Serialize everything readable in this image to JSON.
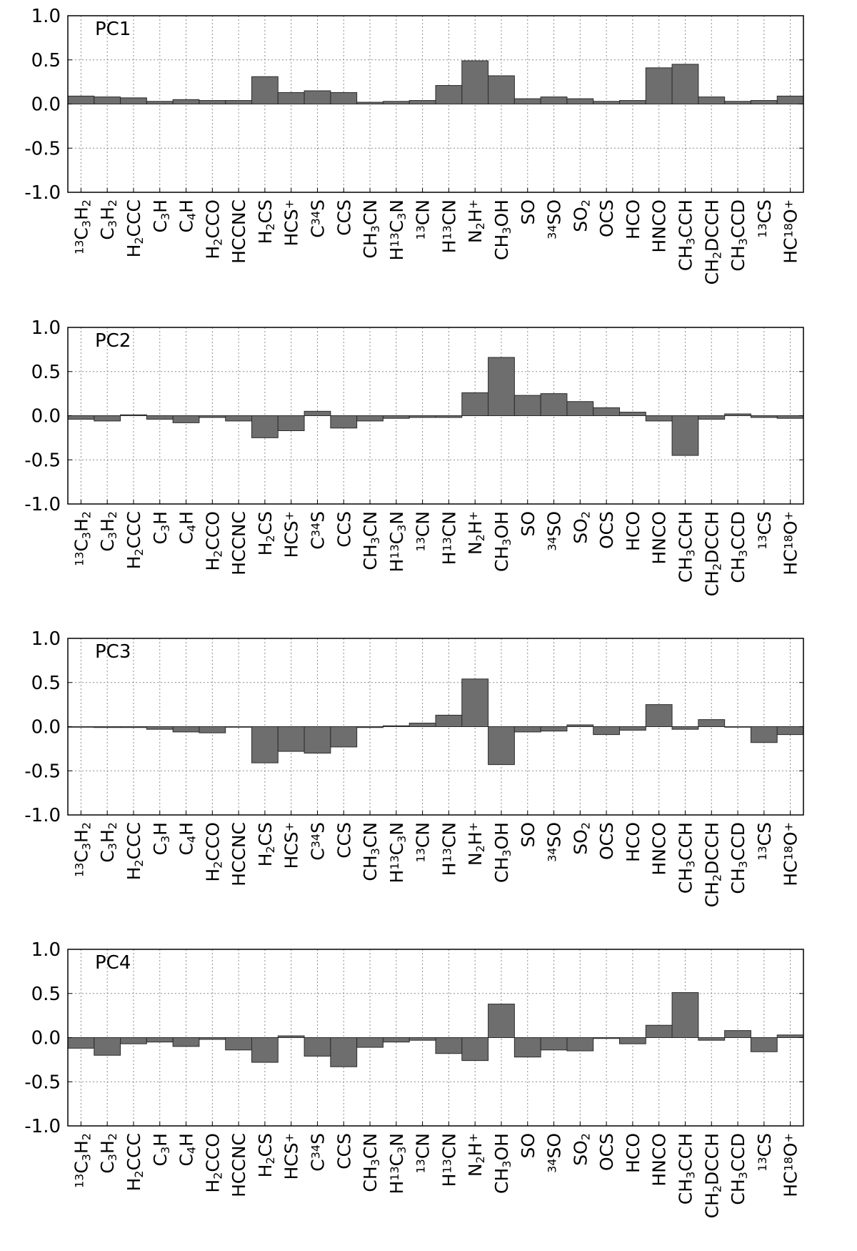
{
  "chart_data": [
    {
      "type": "bar",
      "panel_label": "PC1",
      "categories": [
        "13C3H2",
        "C3H2",
        "H2CCC",
        "C3H",
        "C4H",
        "H2CCO",
        "HCCNC",
        "H2CS",
        "HCS+",
        "C34S",
        "CCS",
        "CH3CN",
        "H13C3N",
        "13CN",
        "H13CN",
        "N2H+",
        "CH3OH",
        "SO",
        "34SO",
        "SO2",
        "OCS",
        "HCO",
        "HNCO",
        "CH3CCH",
        "CH2DCCH",
        "CH3CCD",
        "13CS",
        "HC18O+"
      ],
      "values": [
        0.09,
        0.08,
        0.07,
        0.03,
        0.05,
        0.04,
        0.04,
        0.31,
        0.13,
        0.15,
        0.13,
        0.02,
        0.03,
        0.04,
        0.21,
        0.49,
        0.32,
        0.06,
        0.08,
        0.06,
        0.03,
        0.04,
        0.41,
        0.45,
        0.08,
        0.03,
        0.04,
        0.09
      ],
      "ylim": [
        -1.0,
        1.0
      ],
      "yticks": [
        "1.0",
        "0.5",
        "0.0",
        "-0.5",
        "-1.0"
      ],
      "grid": true
    },
    {
      "type": "bar",
      "panel_label": "PC2",
      "categories": [
        "13C3H2",
        "C3H2",
        "H2CCC",
        "C3H",
        "C4H",
        "H2CCO",
        "HCCNC",
        "H2CS",
        "HCS+",
        "C34S",
        "CCS",
        "CH3CN",
        "H13C3N",
        "13CN",
        "H13CN",
        "N2H+",
        "CH3OH",
        "SO",
        "34SO",
        "SO2",
        "OCS",
        "HCO",
        "HNCO",
        "CH3CCH",
        "CH2DCCH",
        "CH3CCD",
        "13CS",
        "HC18O+"
      ],
      "values": [
        -0.04,
        -0.06,
        0.01,
        -0.04,
        -0.08,
        -0.02,
        -0.06,
        -0.25,
        -0.17,
        0.05,
        -0.14,
        -0.06,
        -0.03,
        -0.02,
        -0.02,
        0.26,
        0.66,
        0.23,
        0.25,
        0.16,
        0.09,
        0.04,
        -0.06,
        -0.45,
        -0.04,
        0.02,
        -0.02,
        -0.03
      ],
      "ylim": [
        -1.0,
        1.0
      ],
      "yticks": [
        "1.0",
        "0.5",
        "0.0",
        "-0.5",
        "-1.0"
      ],
      "grid": true
    },
    {
      "type": "bar",
      "panel_label": "PC3",
      "categories": [
        "13C3H2",
        "C3H2",
        "H2CCC",
        "C3H",
        "C4H",
        "H2CCO",
        "HCCNC",
        "H2CS",
        "HCS+",
        "C34S",
        "CCS",
        "CH3CN",
        "H13C3N",
        "13CN",
        "H13CN",
        "N2H+",
        "CH3OH",
        "SO",
        "34SO",
        "SO2",
        "OCS",
        "HCO",
        "HNCO",
        "CH3CCH",
        "CH2DCCH",
        "CH3CCD",
        "13CS",
        "HC18O+"
      ],
      "values": [
        0.0,
        -0.01,
        -0.01,
        -0.03,
        -0.06,
        -0.07,
        0.0,
        -0.41,
        -0.28,
        -0.3,
        -0.23,
        -0.01,
        0.01,
        0.04,
        0.13,
        0.54,
        -0.43,
        -0.06,
        -0.05,
        0.02,
        -0.09,
        -0.04,
        0.25,
        -0.03,
        0.08,
        0.0,
        -0.18,
        -0.09
      ],
      "ylim": [
        -1.0,
        1.0
      ],
      "yticks": [
        "1.0",
        "0.5",
        "0.0",
        "-0.5",
        "-1.0"
      ],
      "grid": true
    },
    {
      "type": "bar",
      "panel_label": "PC4",
      "categories": [
        "13C3H2",
        "C3H2",
        "H2CCC",
        "C3H",
        "C4H",
        "H2CCO",
        "HCCNC",
        "H2CS",
        "HCS+",
        "C34S",
        "CCS",
        "CH3CN",
        "H13C3N",
        "13CN",
        "H13CN",
        "N2H+",
        "CH3OH",
        "SO",
        "34SO",
        "SO2",
        "OCS",
        "HCO",
        "HNCO",
        "CH3CCH",
        "CH2DCCH",
        "CH3CCD",
        "13CS",
        "HC18O+"
      ],
      "values": [
        -0.12,
        -0.2,
        -0.07,
        -0.05,
        -0.1,
        -0.02,
        -0.14,
        -0.28,
        0.02,
        -0.21,
        -0.33,
        -0.11,
        -0.05,
        -0.03,
        -0.18,
        -0.26,
        0.38,
        -0.22,
        -0.14,
        -0.15,
        -0.01,
        -0.07,
        0.14,
        0.51,
        -0.03,
        0.08,
        -0.16,
        0.03
      ],
      "ylim": [
        -1.0,
        1.0
      ],
      "yticks": [
        "1.0",
        "0.5",
        "0.0",
        "-0.5",
        "-1.0"
      ],
      "grid": true
    }
  ],
  "category_labels_rich": [
    [
      {
        "sup": "13"
      },
      {
        "t": "C"
      },
      {
        "sub": "3"
      },
      {
        "t": "H"
      },
      {
        "sub": "2"
      }
    ],
    [
      {
        "t": "C"
      },
      {
        "sub": "3"
      },
      {
        "t": "H"
      },
      {
        "sub": "2"
      }
    ],
    [
      {
        "t": "H"
      },
      {
        "sub": "2"
      },
      {
        "t": "CCC"
      }
    ],
    [
      {
        "t": "C"
      },
      {
        "sub": "3"
      },
      {
        "t": "H"
      }
    ],
    [
      {
        "t": "C"
      },
      {
        "sub": "4"
      },
      {
        "t": "H"
      }
    ],
    [
      {
        "t": "H"
      },
      {
        "sub": "2"
      },
      {
        "t": "CCO"
      }
    ],
    [
      {
        "t": "HCCNC"
      }
    ],
    [
      {
        "t": "H"
      },
      {
        "sub": "2"
      },
      {
        "t": "CS"
      }
    ],
    [
      {
        "t": "HCS"
      },
      {
        "sup": "+"
      }
    ],
    [
      {
        "t": "C"
      },
      {
        "sup": "34"
      },
      {
        "t": "S"
      }
    ],
    [
      {
        "t": "CCS"
      }
    ],
    [
      {
        "t": "CH"
      },
      {
        "sub": "3"
      },
      {
        "t": "CN"
      }
    ],
    [
      {
        "t": "H"
      },
      {
        "sup": "13"
      },
      {
        "t": "C"
      },
      {
        "sub": "3"
      },
      {
        "t": "N"
      }
    ],
    [
      {
        "sup": "13"
      },
      {
        "t": "CN"
      }
    ],
    [
      {
        "t": "H"
      },
      {
        "sup": "13"
      },
      {
        "t": "CN"
      }
    ],
    [
      {
        "t": "N"
      },
      {
        "sub": "2"
      },
      {
        "t": "H"
      },
      {
        "sup": "+"
      }
    ],
    [
      {
        "t": "CH"
      },
      {
        "sub": "3"
      },
      {
        "t": "OH"
      }
    ],
    [
      {
        "t": "SO"
      }
    ],
    [
      {
        "sup": "34"
      },
      {
        "t": "SO"
      }
    ],
    [
      {
        "t": "SO"
      },
      {
        "sub": "2"
      }
    ],
    [
      {
        "t": "OCS"
      }
    ],
    [
      {
        "t": "HCO"
      }
    ],
    [
      {
        "t": "HNCO"
      }
    ],
    [
      {
        "t": "CH"
      },
      {
        "sub": "3"
      },
      {
        "t": "CCH"
      }
    ],
    [
      {
        "t": "CH"
      },
      {
        "sub": "2"
      },
      {
        "t": "DCCH"
      }
    ],
    [
      {
        "t": "CH"
      },
      {
        "sub": "3"
      },
      {
        "t": "CCD"
      }
    ],
    [
      {
        "sup": "13"
      },
      {
        "t": "CS"
      }
    ],
    [
      {
        "t": "HC"
      },
      {
        "sup": "18"
      },
      {
        "t": "O"
      },
      {
        "sup": "+"
      }
    ]
  ],
  "colors": {
    "bar_fill": "#6e6e6e",
    "bar_edge": "#2b2b2b",
    "axis": "#000000",
    "grid": "#8c8c8c"
  }
}
